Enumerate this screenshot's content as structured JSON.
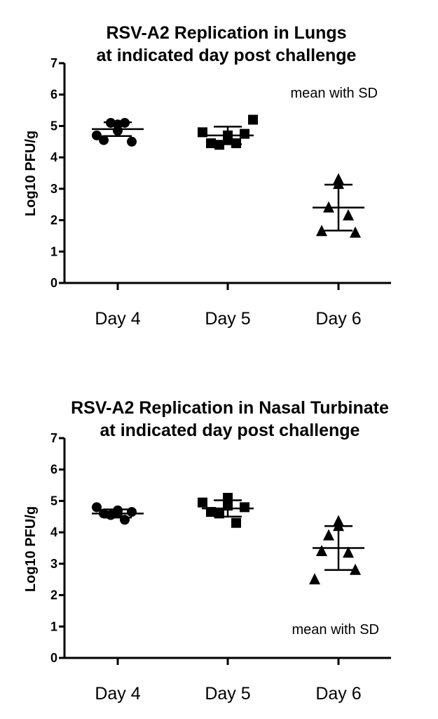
{
  "chart_data": [
    {
      "type": "scatter",
      "title_line1": "RSV-A2 Replication in Lungs",
      "title_line2": "at indicated day post challenge",
      "ylabel": "Log10 PFU/g",
      "xlabel": "",
      "ylim": [
        0,
        7
      ],
      "yticks": [
        "0",
        "1",
        "2",
        "3",
        "4",
        "5",
        "6",
        "7"
      ],
      "annotation": "mean with SD",
      "categories": [
        "Day 4",
        "Day 5",
        "Day 6"
      ],
      "series": [
        {
          "category": "Day 4",
          "marker": "circle",
          "values": [
            4.85,
            5.05,
            5.1,
            5.1,
            4.55,
            4.5,
            4.7
          ],
          "mean": 4.9,
          "sd": 0.22
        },
        {
          "category": "Day 5",
          "marker": "square",
          "values": [
            4.7,
            4.55,
            4.4,
            4.45,
            4.45,
            4.75,
            4.8,
            5.2
          ],
          "mean": 4.7,
          "sd": 0.28
        },
        {
          "category": "Day 6",
          "marker": "triangle",
          "values": [
            3.3,
            3.15,
            2.4,
            2.15,
            1.65,
            1.6
          ],
          "mean": 2.4,
          "sd": 0.73
        }
      ]
    },
    {
      "type": "scatter",
      "title_line1": "RSV-A2 Replication in Nasal Turbinate",
      "title_line2": "at indicated day post challenge",
      "ylabel": "Log10 PFU/g",
      "xlabel": "",
      "ylim": [
        0,
        7
      ],
      "yticks": [
        "0",
        "1",
        "2",
        "3",
        "4",
        "5",
        "6",
        "7"
      ],
      "annotation": "mean with SD",
      "categories": [
        "Day 4",
        "Day 5",
        "Day 6"
      ],
      "series": [
        {
          "category": "Day 4",
          "marker": "circle",
          "values": [
            4.7,
            4.6,
            4.55,
            4.4,
            4.6,
            4.65,
            4.8
          ],
          "mean": 4.6,
          "sd": 0.13
        },
        {
          "category": "Day 5",
          "marker": "square",
          "values": [
            5.1,
            4.85,
            4.6,
            4.3,
            4.65,
            4.8,
            4.95
          ],
          "mean": 4.76,
          "sd": 0.26
        },
        {
          "category": "Day 6",
          "marker": "triangle",
          "values": [
            4.35,
            4.2,
            3.9,
            3.35,
            3.4,
            2.8,
            2.5
          ],
          "mean": 3.5,
          "sd": 0.7
        }
      ]
    }
  ]
}
